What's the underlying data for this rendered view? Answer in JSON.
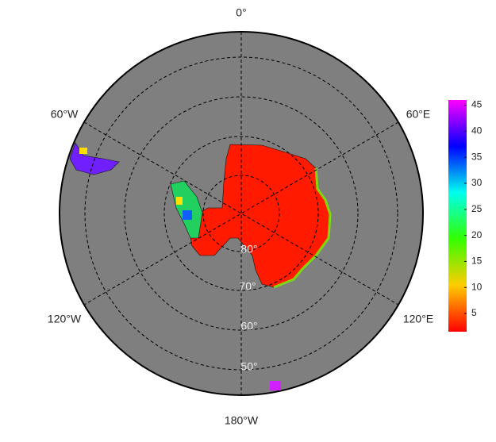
{
  "map": {
    "longitude_labels": [
      "0°",
      "60°E",
      "120°E",
      "180°W",
      "120°W",
      "60°W"
    ],
    "latitude_labels": [
      "80°",
      "70°",
      "60°",
      "50°"
    ]
  },
  "colorbar": {
    "lim": [
      1.5,
      46
    ],
    "ticks": [
      5,
      10,
      15,
      20,
      25,
      30,
      35,
      40,
      45
    ]
  }
}
